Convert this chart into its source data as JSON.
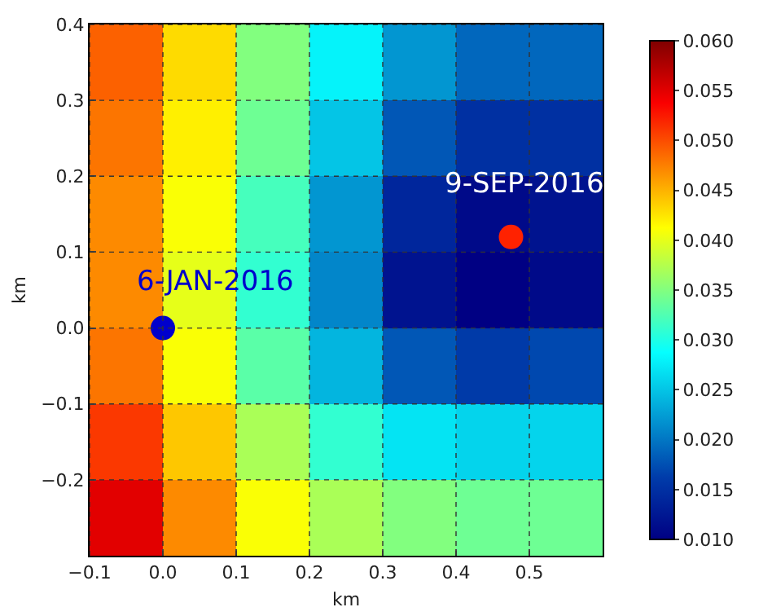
{
  "chart_data": {
    "type": "heatmap",
    "xlabel": "km",
    "ylabel": "km",
    "x": [
      -0.05,
      0.05,
      0.15,
      0.25,
      0.35,
      0.45,
      0.55
    ],
    "y": [
      0.35,
      0.25,
      0.15,
      0.05,
      -0.05,
      -0.15,
      -0.25
    ],
    "cells": [
      [
        0.049,
        0.043,
        0.035,
        0.028,
        0.022,
        0.019,
        0.019
      ],
      [
        0.048,
        0.042,
        0.034,
        0.025,
        0.018,
        0.015,
        0.015
      ],
      [
        0.047,
        0.041,
        0.032,
        0.022,
        0.014,
        0.011,
        0.012
      ],
      [
        0.047,
        0.04,
        0.031,
        0.021,
        0.012,
        0.01,
        0.011
      ],
      [
        0.048,
        0.041,
        0.033,
        0.024,
        0.018,
        0.016,
        0.017
      ],
      [
        0.051,
        0.044,
        0.037,
        0.031,
        0.027,
        0.026,
        0.026
      ],
      [
        0.055,
        0.047,
        0.041,
        0.037,
        0.035,
        0.034,
        0.034
      ]
    ],
    "clim": [
      0.01,
      0.06
    ],
    "cticks": [
      {
        "value": 0.01,
        "label": "0.010"
      },
      {
        "value": 0.015,
        "label": "0.015"
      },
      {
        "value": 0.02,
        "label": "0.020"
      },
      {
        "value": 0.025,
        "label": "0.025"
      },
      {
        "value": 0.03,
        "label": "0.030"
      },
      {
        "value": 0.035,
        "label": "0.035"
      },
      {
        "value": 0.04,
        "label": "0.040"
      },
      {
        "value": 0.045,
        "label": "0.045"
      },
      {
        "value": 0.05,
        "label": "0.050"
      },
      {
        "value": 0.055,
        "label": "0.055"
      },
      {
        "value": 0.06,
        "label": "0.060"
      }
    ],
    "xlim": [
      -0.1,
      0.6
    ],
    "xticks": [
      {
        "value": -0.1,
        "label": "−0.1"
      },
      {
        "value": 0,
        "label": "0.0"
      },
      0.1,
      0.2,
      0.3,
      0.4,
      0.5
    ],
    "ylim": [
      -0.3,
      0.4
    ],
    "yticks": [
      {
        "value": -0.2,
        "label": "−0.2"
      },
      {
        "value": -0.1,
        "label": "−0.1"
      },
      {
        "value": 0,
        "label": "0.0"
      },
      0.1,
      0.2,
      0.3,
      0.4
    ],
    "series": [
      {
        "type": "scatter",
        "x": [
          0
        ],
        "values": [
          0
        ],
        "color": "#0000cc"
      },
      {
        "type": "scatter",
        "x": [
          0.475
        ],
        "values": [
          0.12
        ],
        "color": "#ff2200"
      }
    ],
    "annotations": [
      {
        "text": "6-JAN-2016",
        "x": 0,
        "y": 0
      },
      {
        "text": "9-SEP-2016",
        "x": 0.475,
        "y": 0.12
      }
    ],
    "grid": true,
    "legend": false
  }
}
